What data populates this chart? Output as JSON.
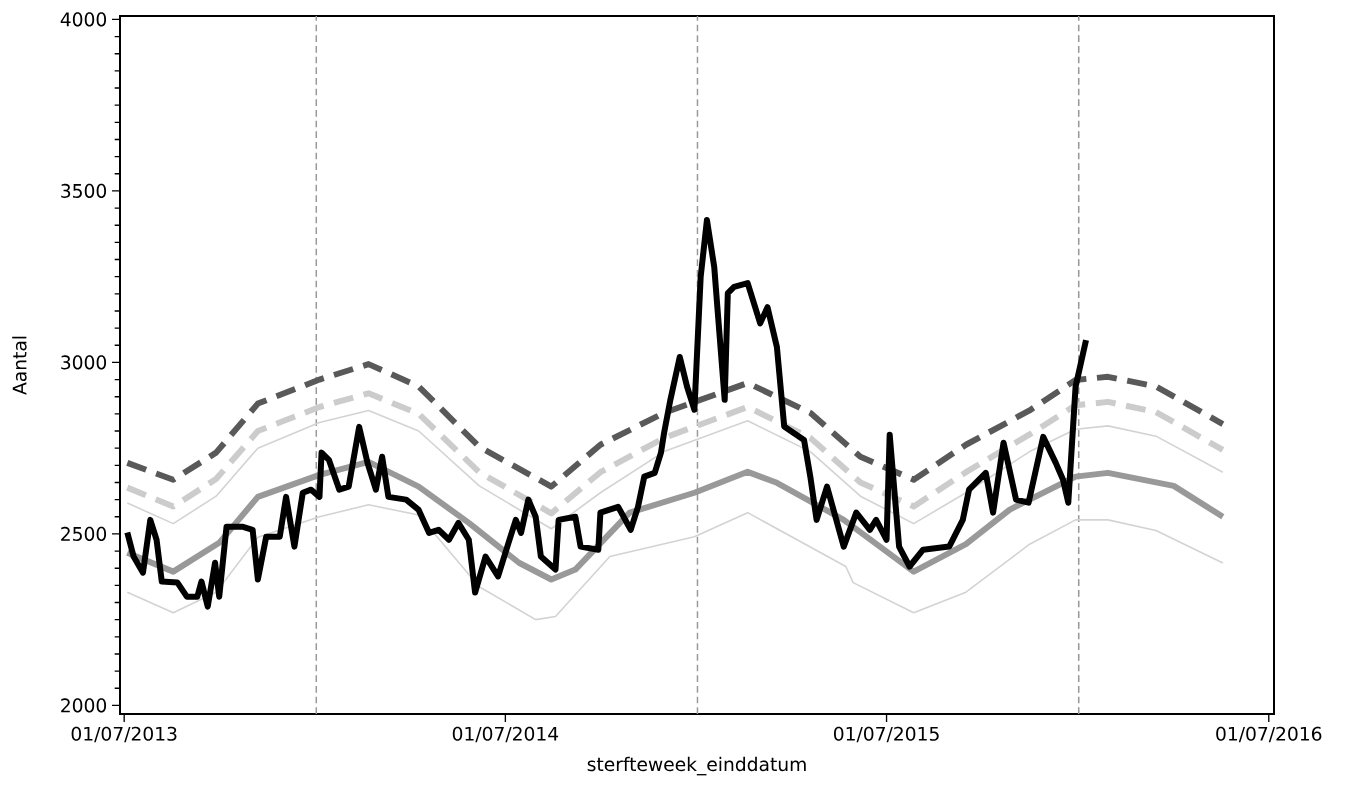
{
  "chart_data": {
    "type": "line",
    "xlabel": "sterfteweek_einddatum",
    "ylabel": "Aantal",
    "xlim": [
      "2013-06-27",
      "2016-07-06"
    ],
    "ylim": [
      1975,
      4010
    ],
    "xticks": [
      {
        "value": "2013-07-01",
        "label": "01/07/2013"
      },
      {
        "value": "2014-07-01",
        "label": "01/07/2014"
      },
      {
        "value": "2015-07-01",
        "label": "01/07/2015"
      },
      {
        "value": "2016-07-01",
        "label": "01/07/2016"
      }
    ],
    "yticks": [
      2000,
      2500,
      3000,
      3500,
      4000
    ],
    "grid": false,
    "ref_lines": [
      {
        "axis": "x",
        "value": "2014-01-01",
        "color": "#999999",
        "line_style": "dashed"
      },
      {
        "axis": "x",
        "value": "2015-01-01",
        "color": "#999999",
        "line_style": "dashed"
      },
      {
        "axis": "x",
        "value": "2016-01-01",
        "color": "#999999",
        "line_style": "dashed"
      }
    ],
    "series": [
      {
        "color": "#d3d3d3",
        "line_style": "solid",
        "x": [
          "2013-07-04",
          "2013-08-17",
          "2013-09-27",
          "2013-11-06",
          "2014-01-04",
          "2014-02-20",
          "2014-04-09",
          "2014-06-06",
          "2014-07-30",
          "2014-08-18",
          "2014-10-09",
          "2014-12-29",
          "2015-02-18",
          "2015-05-23",
          "2015-05-30",
          "2015-07-27",
          "2015-09-15",
          "2015-11-15",
          "2015-12-29",
          "2016-01-29",
          "2016-03-15",
          "2016-05-18"
        ],
        "values": [
          2330,
          2270,
          2330,
          2490,
          2550,
          2585,
          2555,
          2346,
          2250,
          2259,
          2434,
          2492,
          2562,
          2405,
          2358,
          2270,
          2330,
          2470,
          2541,
          2541,
          2510,
          2415
        ]
      },
      {
        "color": "#d3d3d3",
        "line_style": "solid",
        "x": [
          "2013-07-04",
          "2013-08-17",
          "2013-09-27",
          "2013-11-06",
          "2014-01-04",
          "2014-02-20",
          "2014-04-09",
          "2014-06-06",
          "2014-08-14",
          "2014-09-30",
          "2014-11-30",
          "2015-02-18",
          "2015-04-19",
          "2015-06-06",
          "2015-07-27",
          "2015-09-15",
          "2015-11-15",
          "2015-12-29",
          "2016-01-29",
          "2016-03-15",
          "2016-05-18"
        ],
        "values": [
          2590,
          2530,
          2610,
          2750,
          2825,
          2860,
          2800,
          2640,
          2515,
          2620,
          2740,
          2830,
          2740,
          2610,
          2530,
          2620,
          2740,
          2805,
          2815,
          2785,
          2680
        ]
      },
      {
        "color": "#cccccc",
        "line_style": "dashed",
        "x": [
          "2013-07-04",
          "2013-08-17",
          "2013-09-27",
          "2013-11-06",
          "2014-01-04",
          "2014-02-20",
          "2014-04-09",
          "2014-06-06",
          "2014-08-14",
          "2014-09-30",
          "2014-11-30",
          "2015-02-18",
          "2015-04-19",
          "2015-06-06",
          "2015-07-27",
          "2015-09-15",
          "2015-11-15",
          "2015-12-29",
          "2016-01-29",
          "2016-03-15",
          "2016-05-18"
        ],
        "values": [
          2635,
          2580,
          2660,
          2800,
          2870,
          2910,
          2850,
          2680,
          2560,
          2680,
          2780,
          2870,
          2780,
          2650,
          2580,
          2680,
          2790,
          2875,
          2885,
          2855,
          2745
        ]
      },
      {
        "color": "#595959",
        "line_style": "dashed",
        "x": [
          "2013-07-04",
          "2013-08-17",
          "2013-09-27",
          "2013-11-06",
          "2014-01-04",
          "2014-02-20",
          "2014-04-09",
          "2014-06-06",
          "2014-08-14",
          "2014-09-30",
          "2014-11-30",
          "2015-02-18",
          "2015-04-19",
          "2015-06-06",
          "2015-07-27",
          "2015-09-15",
          "2015-11-15",
          "2015-12-29",
          "2016-01-29",
          "2016-03-15",
          "2016-05-18"
        ],
        "values": [
          2707,
          2658,
          2737,
          2880,
          2950,
          2995,
          2930,
          2754,
          2638,
          2760,
          2853,
          2940,
          2853,
          2725,
          2658,
          2760,
          2860,
          2949,
          2958,
          2930,
          2820
        ]
      },
      {
        "color": "#999999",
        "line_style": "solid",
        "x": [
          "2013-07-04",
          "2013-08-17",
          "2013-09-30",
          "2013-11-06",
          "2014-01-04",
          "2014-02-20",
          "2014-04-09",
          "2014-05-27",
          "2014-07-14",
          "2014-08-14",
          "2014-09-06",
          "2014-10-28",
          "2014-12-29",
          "2015-02-18",
          "2015-03-18",
          "2015-05-21",
          "2015-07-27",
          "2015-09-15",
          "2015-10-27",
          "2015-12-29",
          "2016-01-29",
          "2016-04-01",
          "2016-05-18"
        ],
        "values": [
          2445,
          2390,
          2474,
          2608,
          2672,
          2710,
          2638,
          2532,
          2416,
          2367,
          2396,
          2562,
          2620,
          2681,
          2649,
          2541,
          2390,
          2470,
          2571,
          2667,
          2678,
          2640,
          2550
        ]
      },
      {
        "color": "#000000",
        "line_style": "solid",
        "x": [
          "2013-07-04",
          "2013-07-10",
          "2013-07-19",
          "2013-07-26",
          "2013-08-01",
          "2013-08-06",
          "2013-08-21",
          "2013-08-30",
          "2013-09-09",
          "2013-09-13",
          "2013-09-19",
          "2013-09-26",
          "2013-09-30",
          "2013-10-07",
          "2013-10-22",
          "2013-11-01",
          "2013-11-06",
          "2013-11-14",
          "2013-11-27",
          "2013-12-03",
          "2013-12-11",
          "2013-12-19",
          "2013-12-27",
          "2014-01-04",
          "2014-01-06",
          "2014-01-13",
          "2014-01-23",
          "2014-02-01",
          "2014-02-11",
          "2014-02-19",
          "2014-02-27",
          "2014-03-05",
          "2014-03-11",
          "2014-03-28",
          "2014-04-09",
          "2014-04-19",
          "2014-04-28",
          "2014-05-08",
          "2014-05-17",
          "2014-05-27",
          "2014-06-02",
          "2014-06-12",
          "2014-06-24",
          "2014-07-04",
          "2014-07-11",
          "2014-07-16",
          "2014-07-23",
          "2014-07-30",
          "2014-08-04",
          "2014-08-18",
          "2014-08-21",
          "2014-09-06",
          "2014-09-11",
          "2014-09-28",
          "2014-09-30",
          "2014-10-17",
          "2014-10-29",
          "2014-11-05",
          "2014-11-11",
          "2014-11-21",
          "2014-11-27",
          "2014-11-30",
          "2014-12-06",
          "2014-12-15",
          "2014-12-22",
          "2014-12-29",
          "2015-01-04",
          "2015-01-10",
          "2015-01-17",
          "2015-01-20",
          "2015-01-27",
          "2015-01-30",
          "2015-02-05",
          "2015-02-18",
          "2015-03-02",
          "2015-03-09",
          "2015-03-18",
          "2015-03-25",
          "2015-04-13",
          "2015-04-19",
          "2015-04-25",
          "2015-05-05",
          "2015-05-21",
          "2015-06-02",
          "2015-06-15",
          "2015-06-21",
          "2015-07-01",
          "2015-07-04",
          "2015-07-13",
          "2015-07-23",
          "2015-08-05",
          "2015-08-30",
          "2015-09-12",
          "2015-09-18",
          "2015-10-04",
          "2015-10-11",
          "2015-10-21",
          "2015-11-02",
          "2015-11-14",
          "2015-11-28",
          "2015-12-10",
          "2015-12-17",
          "2015-12-22",
          "2015-12-29",
          "2016-01-08"
        ],
        "values": [
          2504,
          2434,
          2387,
          2541,
          2483,
          2361,
          2358,
          2317,
          2317,
          2361,
          2288,
          2416,
          2317,
          2521,
          2521,
          2512,
          2367,
          2492,
          2492,
          2608,
          2463,
          2620,
          2629,
          2608,
          2737,
          2716,
          2629,
          2638,
          2812,
          2707,
          2629,
          2725,
          2608,
          2600,
          2570,
          2503,
          2512,
          2483,
          2532,
          2483,
          2329,
          2434,
          2376,
          2474,
          2541,
          2503,
          2600,
          2550,
          2434,
          2396,
          2541,
          2550,
          2463,
          2454,
          2562,
          2579,
          2512,
          2579,
          2667,
          2678,
          2737,
          2795,
          2891,
          3016,
          2929,
          2862,
          3249,
          3415,
          3278,
          3161,
          2891,
          3202,
          3220,
          3231,
          3114,
          3161,
          3045,
          2813,
          2774,
          2667,
          2541,
          2638,
          2463,
          2562,
          2512,
          2541,
          2483,
          2789,
          2463,
          2405,
          2454,
          2463,
          2541,
          2629,
          2678,
          2562,
          2766,
          2600,
          2591,
          2783,
          2707,
          2658,
          2591,
          2929,
          3065
        ]
      }
    ]
  }
}
